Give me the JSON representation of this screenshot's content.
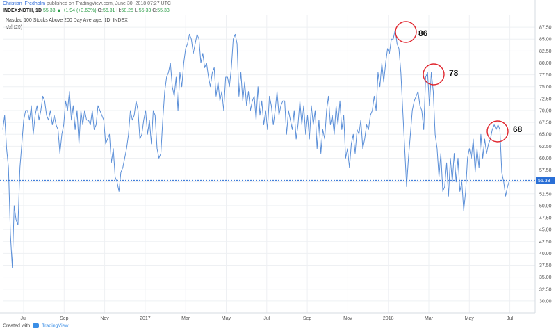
{
  "header": {
    "publisher_user": "Christian_Fredholm",
    "publisher_rest": "published on TradingView.com, June 30, 2018 07:27 UTC",
    "symbol": "INDEX:NDTH, 1D",
    "last": "55.33",
    "change": "▲ +1.94 (+3.63%)",
    "ohlc": [
      {
        "label": "O:",
        "value": "56.31"
      },
      {
        "label": "H:",
        "value": "58.25"
      },
      {
        "label": "L:",
        "value": "55.33"
      },
      {
        "label": "C:",
        "value": "55.33"
      }
    ],
    "indicator_title": "Nasdaq 100 Stocks Above 200 Day Average, 1D, INDEX",
    "volume_label": "Vol (20)"
  },
  "footer": {
    "created_with": "Created with",
    "brand": "TradingView"
  },
  "colors": {
    "line": "#5b8fd8",
    "grid": "#eef0f3",
    "annotation_circle": "#e0262e",
    "last_price": "#2a6fd6"
  },
  "chart_data": {
    "type": "line",
    "x_tick_labels": [
      "Jul",
      "Sep",
      "Nov",
      "2017",
      "Mar",
      "May",
      "Jul",
      "Sep",
      "Nov",
      "2018",
      "Mar",
      "May",
      "Jul"
    ],
    "y_tick_labels": [
      "87.50",
      "85.00",
      "82.50",
      "80.00",
      "77.50",
      "75.00",
      "72.50",
      "70.00",
      "67.50",
      "65.00",
      "62.50",
      "60.00",
      "57.50",
      "55.00",
      "52.50",
      "50.00",
      "47.50",
      "45.00",
      "42.50",
      "40.00",
      "37.50",
      "35.00",
      "32.50",
      "30.00"
    ],
    "ylim": [
      27.5,
      90
    ],
    "last_value": 55.33,
    "last_value_label": "55.33",
    "annotations": [
      {
        "label": "86",
        "value": 86,
        "x_index": 0
      },
      {
        "label": "78",
        "value": 78,
        "x_index": 1
      },
      {
        "label": "68",
        "value": 68,
        "x_index": 2
      }
    ],
    "series": [
      {
        "values": [
          66,
          69,
          62,
          58,
          44,
          37,
          50,
          47,
          46,
          58,
          63,
          68,
          70,
          70,
          68,
          71,
          65,
          69,
          71,
          68,
          70,
          73,
          72,
          69,
          68,
          70,
          67,
          69,
          67,
          66,
          61,
          65,
          67,
          72,
          70,
          74,
          68,
          71,
          66,
          70,
          63,
          70,
          67,
          70,
          68,
          68,
          67,
          70,
          66,
          67,
          71,
          70,
          69,
          68,
          63,
          64,
          65,
          59,
          62,
          56,
          55,
          53,
          57,
          58,
          60,
          62,
          65,
          70,
          68,
          69,
          72,
          70,
          64,
          65,
          68,
          70,
          65,
          68,
          63,
          70,
          69,
          62,
          60,
          61,
          68,
          74,
          77,
          78,
          80,
          75,
          73,
          77,
          70,
          78,
          75,
          80,
          83,
          84,
          86,
          85,
          82,
          84,
          86,
          85,
          80,
          82,
          79,
          80,
          77,
          75,
          78,
          79,
          73,
          76,
          72,
          74,
          70,
          77,
          77,
          75,
          79,
          85,
          86,
          84,
          73,
          78,
          72,
          76,
          71,
          74,
          70,
          72,
          73,
          68,
          75,
          69,
          72,
          67,
          70,
          66,
          73,
          71,
          67,
          70,
          74,
          69,
          71,
          72,
          72,
          65,
          70,
          68,
          66,
          70,
          64,
          67,
          72,
          67,
          71,
          65,
          69,
          64,
          71,
          67,
          70,
          62,
          68,
          61,
          66,
          64,
          70,
          73,
          67,
          69,
          65,
          71,
          67,
          72,
          66,
          69,
          60,
          62,
          58,
          63,
          65,
          61,
          66,
          65,
          68,
          62,
          64,
          67,
          66,
          69,
          70,
          73,
          70,
          78,
          75,
          80,
          76,
          80,
          83,
          82,
          85,
          85,
          87,
          84,
          83,
          78,
          70,
          62,
          54,
          60,
          65,
          70,
          72,
          73,
          74,
          71,
          70,
          66,
          77,
          78,
          71,
          78,
          74,
          65,
          62,
          56,
          61,
          53,
          54,
          59,
          52,
          60,
          55,
          61,
          55,
          60,
          53,
          55,
          49,
          53,
          60,
          62,
          60,
          64,
          57,
          62,
          58,
          65,
          60,
          64,
          61,
          63,
          64,
          66,
          67,
          66,
          67,
          66,
          57,
          55,
          52,
          54,
          55.33
        ]
      }
    ]
  }
}
